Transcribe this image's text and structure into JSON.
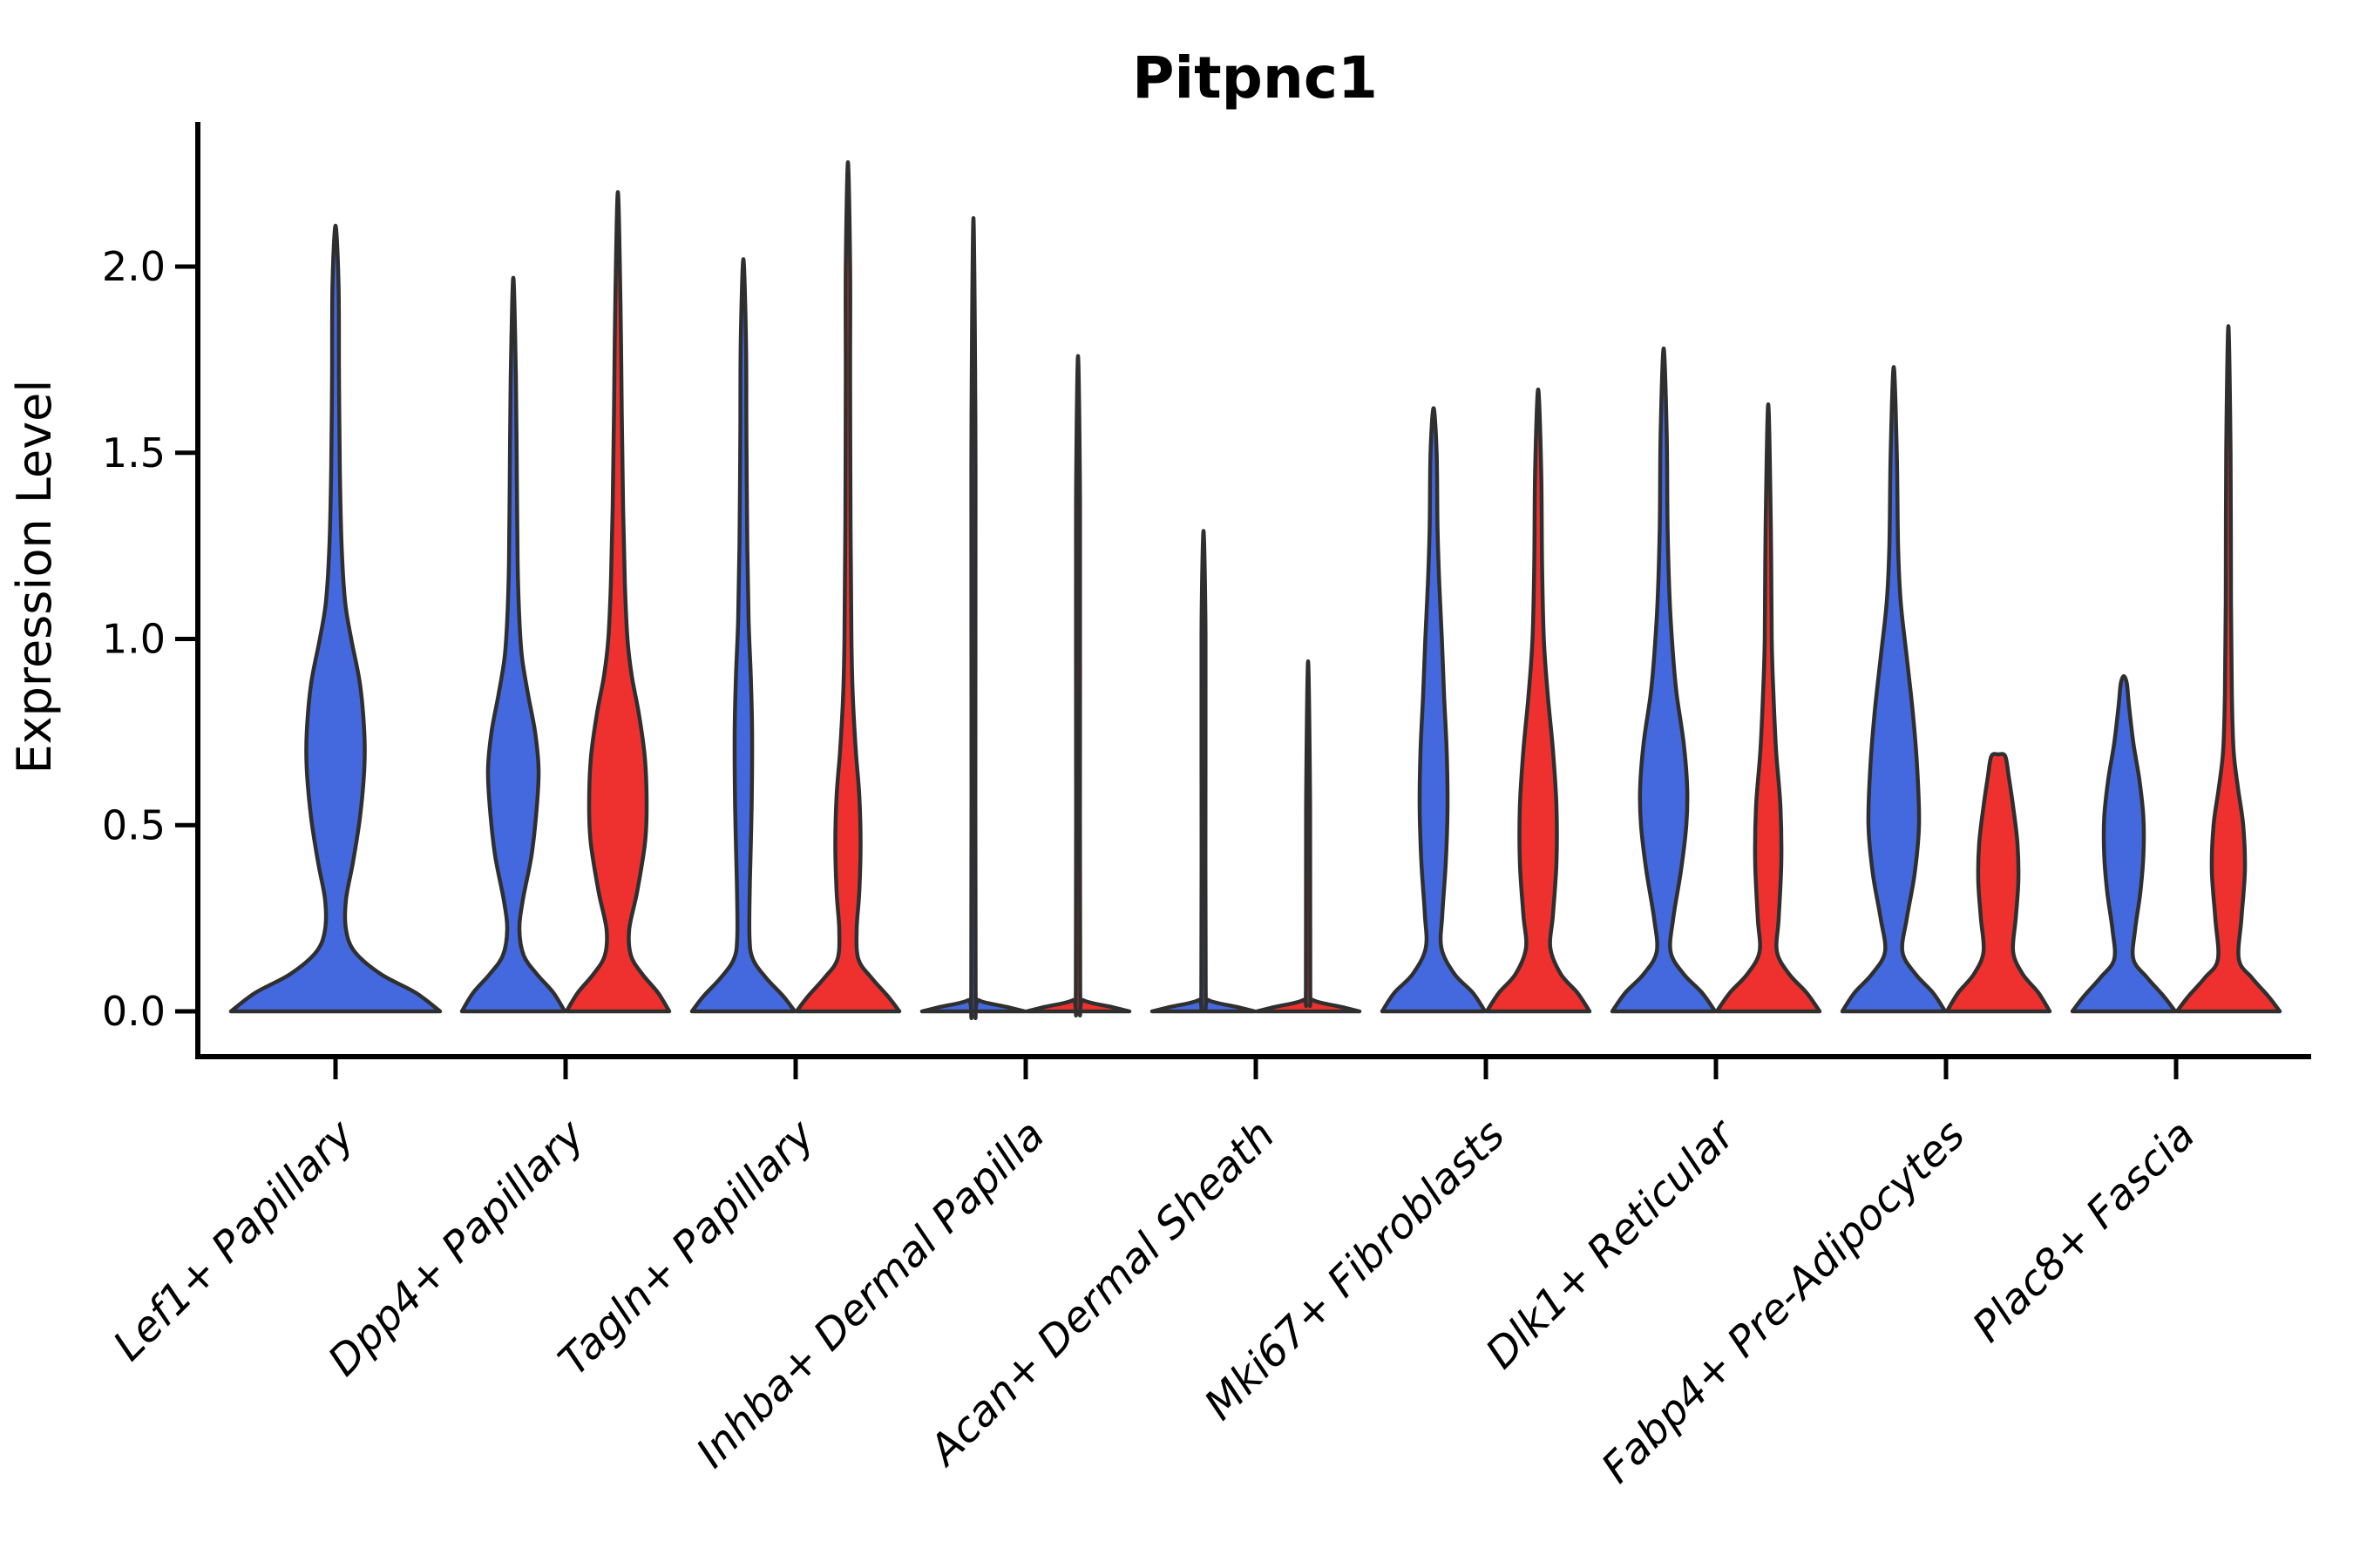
{
  "chart_data": {
    "type": "violin",
    "title": "Pitpnc1",
    "ylabel": "Expression Level",
    "xlabel": "",
    "legend_position": "none",
    "grid": false,
    "ylim": [
      -0.12,
      2.5
    ],
    "ytick_labels": [
      "0.0",
      "0.5",
      "1.0",
      "1.5",
      "2.0"
    ],
    "ytick_values": [
      0,
      0.5,
      1.0,
      1.5,
      2.0
    ],
    "categories": [
      "Lef1+ Papillary",
      "Dpp4+ Papillary",
      "Tagln+ Papillary",
      "Inhba+ Dermal Papilla",
      "Acan+ Dermal Sheath",
      "Mki67+ Fibroblasts",
      "Dlk1+ Reticular",
      "Fabp4+ Pre-Adipocytes",
      "Plac8+ Fascia"
    ],
    "colors": {
      "blue": "#4469DF",
      "red": "#EE312E",
      "outline": "#2F2F2F",
      "axis": "#000000"
    },
    "groups": [
      {
        "label": "Lef1+ Papillary",
        "violins": [
          {
            "color_key": "blue",
            "max_value": 2.11,
            "full_width": true,
            "profile": [
              [
                0,
                120
              ],
              [
                0.05,
                92
              ],
              [
                0.1,
                52
              ],
              [
                0.16,
                22
              ],
              [
                0.22,
                12
              ],
              [
                0.3,
                12
              ],
              [
                0.4,
                20
              ],
              [
                0.52,
                28
              ],
              [
                0.65,
                33
              ],
              [
                0.75,
                33
              ],
              [
                0.88,
                28
              ],
              [
                1.0,
                18
              ],
              [
                1.1,
                11
              ],
              [
                1.25,
                7
              ],
              [
                1.45,
                5
              ],
              [
                1.7,
                4
              ],
              [
                1.95,
                3.5
              ],
              [
                2.11,
                0
              ]
            ]
          }
        ]
      },
      {
        "label": "Dpp4+ Papillary",
        "violins": [
          {
            "color_key": "blue",
            "max_value": 1.97,
            "full_width": false,
            "profile": [
              [
                0,
                59
              ],
              [
                0.05,
                46
              ],
              [
                0.1,
                27
              ],
              [
                0.15,
                12
              ],
              [
                0.22,
                7
              ],
              [
                0.3,
                11
              ],
              [
                0.42,
                21
              ],
              [
                0.55,
                27
              ],
              [
                0.65,
                29
              ],
              [
                0.75,
                25
              ],
              [
                0.85,
                17
              ],
              [
                0.95,
                10
              ],
              [
                1.05,
                7
              ],
              [
                1.2,
                5
              ],
              [
                1.45,
                4
              ],
              [
                1.7,
                3
              ],
              [
                1.97,
                0
              ]
            ]
          },
          {
            "color_key": "red",
            "max_value": 2.2,
            "full_width": false,
            "profile": [
              [
                0,
                59
              ],
              [
                0.05,
                46
              ],
              [
                0.1,
                28
              ],
              [
                0.15,
                15
              ],
              [
                0.22,
                13
              ],
              [
                0.32,
                22
              ],
              [
                0.45,
                31
              ],
              [
                0.55,
                33
              ],
              [
                0.68,
                31
              ],
              [
                0.8,
                24
              ],
              [
                0.9,
                16
              ],
              [
                1.0,
                11
              ],
              [
                1.15,
                8
              ],
              [
                1.35,
                6
              ],
              [
                1.6,
                4.5
              ],
              [
                1.9,
                3
              ],
              [
                2.2,
                0
              ]
            ]
          }
        ]
      },
      {
        "label": "Tagln+ Papillary",
        "violins": [
          {
            "color_key": "blue",
            "max_value": 2.02,
            "full_width": false,
            "profile": [
              [
                0,
                59
              ],
              [
                0.04,
                46
              ],
              [
                0.09,
                26
              ],
              [
                0.14,
                11
              ],
              [
                0.2,
                7
              ],
              [
                0.35,
                7.5
              ],
              [
                0.55,
                9.5
              ],
              [
                0.75,
                10
              ],
              [
                0.9,
                8.5
              ],
              [
                1.05,
                6
              ],
              [
                1.25,
                4.5
              ],
              [
                1.55,
                3.5
              ],
              [
                1.8,
                3
              ],
              [
                2.02,
                0
              ]
            ]
          },
          {
            "color_key": "red",
            "max_value": 2.28,
            "full_width": false,
            "profile": [
              [
                0,
                59
              ],
              [
                0.04,
                46
              ],
              [
                0.09,
                27
              ],
              [
                0.14,
                12
              ],
              [
                0.22,
                10
              ],
              [
                0.32,
                13
              ],
              [
                0.45,
                14.5
              ],
              [
                0.58,
                13
              ],
              [
                0.7,
                9
              ],
              [
                0.85,
                5.5
              ],
              [
                1.0,
                4
              ],
              [
                1.3,
                3
              ],
              [
                1.7,
                2.5
              ],
              [
                2.0,
                2.5
              ],
              [
                2.28,
                0
              ]
            ]
          }
        ]
      },
      {
        "label": "Inhba+ Dermal Papilla",
        "violins": [
          {
            "color_key": "blue",
            "max_value": 2.13,
            "full_width": false,
            "profile": [
              [
                0,
                59
              ],
              [
                0.012,
                38
              ],
              [
                0.03,
                6
              ],
              [
                0.06,
                2.5
              ],
              [
                1.0,
                2.3
              ],
              [
                1.6,
                2.2
              ],
              [
                2.13,
                0
              ]
            ]
          },
          {
            "color_key": "red",
            "max_value": 1.76,
            "full_width": false,
            "profile": [
              [
                0,
                59
              ],
              [
                0.012,
                38
              ],
              [
                0.03,
                6
              ],
              [
                0.06,
                2.5
              ],
              [
                0.9,
                2.3
              ],
              [
                1.4,
                2.2
              ],
              [
                1.76,
                0
              ]
            ]
          }
        ]
      },
      {
        "label": "Acan+ Dermal Sheath",
        "violins": [
          {
            "color_key": "blue",
            "max_value": 1.29,
            "full_width": false,
            "profile": [
              [
                0,
                59
              ],
              [
                0.012,
                38
              ],
              [
                0.03,
                6
              ],
              [
                0.06,
                2.5
              ],
              [
                0.7,
                2.3
              ],
              [
                1.05,
                2.2
              ],
              [
                1.29,
                0
              ]
            ]
          },
          {
            "color_key": "red",
            "max_value": 0.94,
            "full_width": false,
            "profile": [
              [
                0,
                59
              ],
              [
                0.012,
                38
              ],
              [
                0.03,
                6
              ],
              [
                0.06,
                2.5
              ],
              [
                0.55,
                2.3
              ],
              [
                0.94,
                0
              ]
            ]
          }
        ]
      },
      {
        "label": "Mki67+ Fibroblasts",
        "violins": [
          {
            "color_key": "blue",
            "max_value": 1.62,
            "full_width": false,
            "profile": [
              [
                0,
                59
              ],
              [
                0.05,
                45
              ],
              [
                0.1,
                24
              ],
              [
                0.17,
                9
              ],
              [
                0.26,
                10
              ],
              [
                0.4,
                14
              ],
              [
                0.55,
                16
              ],
              [
                0.7,
                15
              ],
              [
                0.85,
                12
              ],
              [
                1.0,
                9.5
              ],
              [
                1.15,
                6.5
              ],
              [
                1.3,
                4.5
              ],
              [
                1.5,
                3.5
              ],
              [
                1.62,
                0
              ]
            ]
          },
          {
            "color_key": "red",
            "max_value": 1.67,
            "full_width": false,
            "profile": [
              [
                0,
                59
              ],
              [
                0.05,
                45
              ],
              [
                0.1,
                26
              ],
              [
                0.17,
                14
              ],
              [
                0.26,
                17
              ],
              [
                0.4,
                21
              ],
              [
                0.55,
                21
              ],
              [
                0.7,
                17
              ],
              [
                0.85,
                11
              ],
              [
                1.0,
                6.5
              ],
              [
                1.2,
                4.5
              ],
              [
                1.45,
                3.5
              ],
              [
                1.67,
                0
              ]
            ]
          }
        ]
      },
      {
        "label": "Dlk1+ Reticular",
        "violins": [
          {
            "color_key": "blue",
            "max_value": 1.78,
            "full_width": false,
            "profile": [
              [
                0,
                59
              ],
              [
                0.05,
                44
              ],
              [
                0.1,
                23
              ],
              [
                0.16,
                8
              ],
              [
                0.25,
                11
              ],
              [
                0.38,
                20
              ],
              [
                0.5,
                26
              ],
              [
                0.6,
                27
              ],
              [
                0.72,
                23
              ],
              [
                0.85,
                15
              ],
              [
                0.95,
                11
              ],
              [
                1.1,
                7
              ],
              [
                1.3,
                4.5
              ],
              [
                1.55,
                3.5
              ],
              [
                1.78,
                0
              ]
            ]
          },
          {
            "color_key": "red",
            "max_value": 1.63,
            "full_width": false,
            "profile": [
              [
                0,
                59
              ],
              [
                0.05,
                44
              ],
              [
                0.1,
                24
              ],
              [
                0.16,
                10
              ],
              [
                0.25,
                12
              ],
              [
                0.4,
                15
              ],
              [
                0.55,
                14
              ],
              [
                0.7,
                9
              ],
              [
                0.85,
                6
              ],
              [
                1.0,
                4
              ],
              [
                1.3,
                3
              ],
              [
                1.63,
                0
              ]
            ]
          }
        ]
      },
      {
        "label": "Fabp4+ Pre-Adipocytes",
        "violins": [
          {
            "color_key": "blue",
            "max_value": 1.73,
            "full_width": false,
            "profile": [
              [
                0,
                59
              ],
              [
                0.05,
                45
              ],
              [
                0.1,
                25
              ],
              [
                0.16,
                10
              ],
              [
                0.25,
                15
              ],
              [
                0.37,
                24
              ],
              [
                0.5,
                29
              ],
              [
                0.65,
                27
              ],
              [
                0.8,
                22
              ],
              [
                0.95,
                15
              ],
              [
                1.1,
                8
              ],
              [
                1.25,
                5
              ],
              [
                1.5,
                3.5
              ],
              [
                1.73,
                0
              ]
            ]
          },
          {
            "color_key": "red",
            "max_value": 0.69,
            "full_width": false,
            "profile": [
              [
                0,
                59
              ],
              [
                0.05,
                46
              ],
              [
                0.1,
                28
              ],
              [
                0.16,
                17
              ],
              [
                0.25,
                20
              ],
              [
                0.35,
                23
              ],
              [
                0.45,
                22
              ],
              [
                0.55,
                17
              ],
              [
                0.63,
                12
              ],
              [
                0.685,
                8
              ],
              [
                0.69,
                0
              ]
            ]
          }
        ]
      },
      {
        "label": "Plac8+ Fascia",
        "violins": [
          {
            "color_key": "blue",
            "max_value": 0.9,
            "full_width": false,
            "profile": [
              [
                0,
                59
              ],
              [
                0.04,
                46
              ],
              [
                0.09,
                27
              ],
              [
                0.14,
                11
              ],
              [
                0.22,
                13
              ],
              [
                0.32,
                19
              ],
              [
                0.42,
                22.5
              ],
              [
                0.52,
                22.5
              ],
              [
                0.62,
                18
              ],
              [
                0.72,
                11
              ],
              [
                0.82,
                6
              ],
              [
                0.88,
                3.5
              ],
              [
                0.9,
                0
              ]
            ]
          },
          {
            "color_key": "red",
            "max_value": 1.84,
            "full_width": false,
            "profile": [
              [
                0,
                59
              ],
              [
                0.04,
                46
              ],
              [
                0.09,
                27
              ],
              [
                0.14,
                12
              ],
              [
                0.25,
                15
              ],
              [
                0.38,
                19
              ],
              [
                0.5,
                17
              ],
              [
                0.6,
                11
              ],
              [
                0.7,
                6
              ],
              [
                0.85,
                4
              ],
              [
                1.1,
                3
              ],
              [
                1.5,
                2.5
              ],
              [
                1.84,
                0
              ]
            ]
          }
        ]
      }
    ]
  }
}
